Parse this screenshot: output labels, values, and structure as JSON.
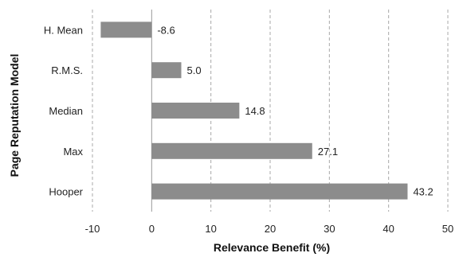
{
  "chart_data": {
    "type": "bar",
    "orientation": "horizontal",
    "categories": [
      "H. Mean",
      "R.M.S.",
      "Median",
      "Max",
      "Hooper"
    ],
    "values": [
      -8.6,
      5.0,
      14.8,
      27.1,
      43.2
    ],
    "value_labels": [
      "-8.6",
      "5.0",
      "14.8",
      "27.1",
      "43.2"
    ],
    "xlabel": "Relevance Benefit (%)",
    "ylabel": "Page Reputation Model",
    "xlim": [
      -10,
      50
    ],
    "xticks": [
      "-10",
      "0",
      "10",
      "20",
      "30",
      "40",
      "50"
    ],
    "grid": "vertical dashed",
    "bar_color": "#8c8c8c"
  }
}
